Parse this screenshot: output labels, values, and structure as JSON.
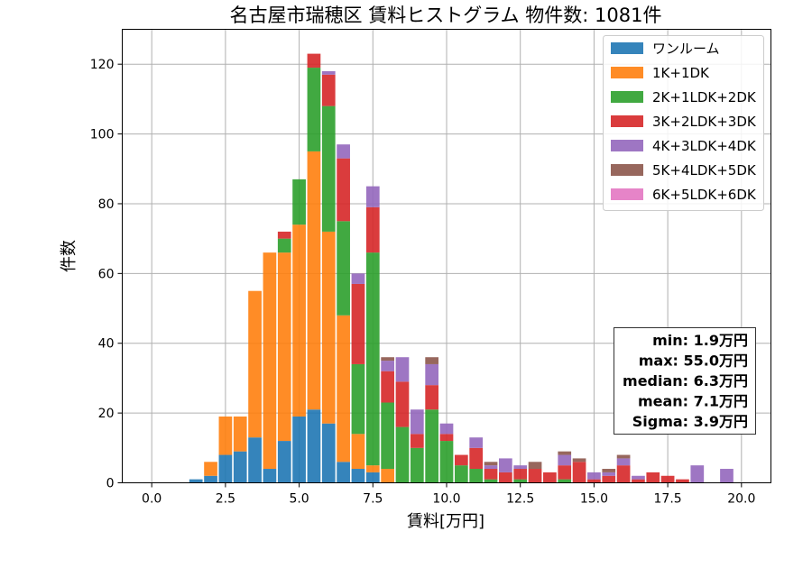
{
  "chart_data": {
    "type": "bar",
    "stacked": true,
    "title": "名古屋市瑞穂区 賃料ヒストグラム 物件数: 1081件",
    "xlabel": "賃料[万円]",
    "ylabel": "件数",
    "xlim": [
      -1.0,
      21.0
    ],
    "ylim": [
      0,
      130
    ],
    "xticks": [
      0.0,
      2.5,
      5.0,
      7.5,
      10.0,
      12.5,
      15.0,
      17.5,
      20.0
    ],
    "xtick_labels": [
      "0.0",
      "2.5",
      "5.0",
      "7.5",
      "10.0",
      "12.5",
      "15.0",
      "17.5",
      "20.0"
    ],
    "yticks": [
      0,
      20,
      40,
      60,
      80,
      100,
      120
    ],
    "ytick_labels": [
      "0",
      "20",
      "40",
      "60",
      "80",
      "100",
      "120"
    ],
    "grid": true,
    "legend_position": "top-right",
    "bin_width": 0.5,
    "x": [
      1.5,
      2.0,
      2.5,
      3.0,
      3.5,
      4.0,
      4.5,
      5.0,
      5.5,
      6.0,
      6.5,
      7.0,
      7.5,
      8.0,
      8.5,
      9.0,
      9.5,
      10.0,
      10.5,
      11.0,
      11.5,
      12.0,
      12.5,
      13.0,
      13.5,
      14.0,
      14.5,
      15.0,
      15.5,
      16.0,
      16.5,
      17.0,
      17.5,
      18.0,
      18.5,
      19.0,
      19.5,
      20.0
    ],
    "series": [
      {
        "name": "ワンルーム",
        "color": "#1f77b4",
        "values": [
          1,
          2,
          8,
          9,
          13,
          4,
          12,
          19,
          21,
          17,
          6,
          4,
          3,
          0,
          0,
          0,
          0,
          0,
          0,
          0,
          0,
          0,
          0,
          0,
          0,
          0,
          0,
          0,
          0,
          0,
          0,
          0,
          0,
          0,
          0,
          0,
          0,
          0
        ]
      },
      {
        "name": "1K+1DK",
        "color": "#ff7f0e",
        "values": [
          0,
          4,
          11,
          10,
          42,
          62,
          54,
          55,
          74,
          55,
          42,
          10,
          2,
          4,
          0,
          0,
          0,
          0,
          0,
          0,
          0,
          0,
          0,
          0,
          0,
          0,
          0,
          0,
          0,
          0,
          0,
          0,
          0,
          0,
          0,
          0,
          0,
          0
        ]
      },
      {
        "name": "2K+1LDK+2DK",
        "color": "#2ca02c",
        "values": [
          0,
          0,
          0,
          0,
          0,
          0,
          4,
          13,
          24,
          36,
          27,
          20,
          61,
          19,
          16,
          10,
          21,
          12,
          5,
          4,
          1,
          0,
          1,
          0,
          0,
          1,
          0,
          0,
          0,
          0,
          0,
          0,
          0,
          0,
          0,
          0,
          0,
          0
        ]
      },
      {
        "name": "3K+2LDK+3DK",
        "color": "#d62728",
        "values": [
          0,
          0,
          0,
          0,
          0,
          0,
          2,
          0,
          4,
          9,
          18,
          23,
          13,
          9,
          13,
          4,
          7,
          2,
          3,
          6,
          3,
          3,
          3,
          4,
          3,
          4,
          6,
          1,
          2,
          5,
          1,
          3,
          2,
          1,
          0,
          0,
          0,
          0
        ]
      },
      {
        "name": "4K+3LDK+4DK",
        "color": "#9467bd",
        "values": [
          0,
          0,
          0,
          0,
          0,
          0,
          0,
          0,
          0,
          1,
          4,
          3,
          6,
          3,
          7,
          7,
          6,
          3,
          0,
          3,
          1,
          4,
          1,
          0,
          0,
          3,
          0,
          2,
          1,
          2,
          1,
          0,
          0,
          0,
          5,
          0,
          4,
          0
        ]
      },
      {
        "name": "5K+4LDK+5DK",
        "color": "#8c564b",
        "values": [
          0,
          0,
          0,
          0,
          0,
          0,
          0,
          0,
          0,
          0,
          0,
          0,
          0,
          1,
          0,
          0,
          2,
          0,
          0,
          0,
          1,
          0,
          0,
          2,
          0,
          1,
          1,
          0,
          1,
          1,
          0,
          0,
          0,
          0,
          0,
          0,
          0,
          0
        ]
      },
      {
        "name": "6K+5LDK+6DK",
        "color": "#e377c2",
        "values": [
          0,
          0,
          0,
          0,
          0,
          0,
          0,
          0,
          0,
          0,
          0,
          0,
          0,
          0,
          0,
          0,
          0,
          0,
          0,
          0,
          0,
          0,
          0,
          0,
          0,
          0,
          0,
          0,
          0,
          0,
          0,
          0,
          0,
          0,
          0,
          0,
          0,
          0
        ]
      }
    ],
    "stats": [
      "min: 1.9万円",
      "max: 55.0万円",
      "median: 6.3万円",
      "mean: 7.1万円",
      "Sigma: 3.9万円"
    ]
  }
}
